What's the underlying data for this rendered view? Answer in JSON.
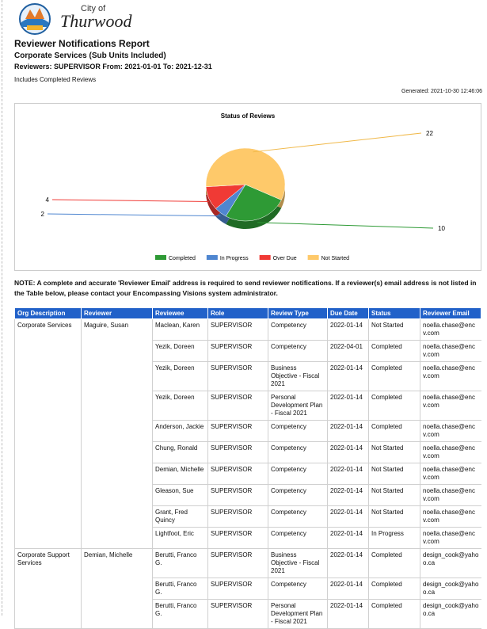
{
  "header": {
    "city": "City of",
    "name": "Thurwood"
  },
  "report": {
    "title": "Reviewer Notifications Report",
    "subtitle": "Corporate Services (Sub Units Included)",
    "reviewers": "Reviewers: SUPERVISOR From: 2021-01-01 To: 2021-12-31",
    "includes": "Includes Completed Reviews",
    "generated": "Generated: 2021-10-30 12:46:06"
  },
  "chart_data": {
    "type": "pie",
    "title": "Status of Reviews",
    "categories": [
      "Completed",
      "In Progress",
      "Over Due",
      "Not Started"
    ],
    "values": [
      10,
      2,
      4,
      22
    ],
    "colors": [
      "#2e9a35",
      "#4f86d0",
      "#f03a35",
      "#fec96a"
    ]
  },
  "note": "NOTE: A complete and accurate 'Reviewer Email' address is required to send reviewer notifications.  If a reviewer(s) email address is not listed in the Table below, please contact your Encompassing Visions system administrator.",
  "table": {
    "columns": [
      "Org Description",
      "Reviewer",
      "Reviewee",
      "Role",
      "Review Type",
      "Due Date",
      "Status",
      "Reviewer Email"
    ],
    "groups": [
      {
        "org": "Corporate Services",
        "reviewer": "Maguire, Susan",
        "rows": [
          [
            "Maclean, Karen",
            "SUPERVISOR",
            "Competency",
            "2022-01-14",
            "Not Started",
            "noella.chase@encv.com"
          ],
          [
            "Yezik, Doreen",
            "SUPERVISOR",
            "Competency",
            "2022-04-01",
            "Completed",
            "noella.chase@encv.com"
          ],
          [
            "Yezik, Doreen",
            "SUPERVISOR",
            "Business Objective - Fiscal 2021",
            "2022-01-14",
            "Completed",
            "noella.chase@encv.com"
          ],
          [
            "Yezik, Doreen",
            "SUPERVISOR",
            "Personal Development Plan - Fiscal 2021",
            "2022-01-14",
            "Completed",
            "noella.chase@encv.com"
          ],
          [
            "Anderson, Jackie",
            "SUPERVISOR",
            "Competency",
            "2022-01-14",
            "Completed",
            "noella.chase@encv.com"
          ],
          [
            "Chung, Ronald",
            "SUPERVISOR",
            "Competency",
            "2022-01-14",
            "Not Started",
            "noella.chase@encv.com"
          ],
          [
            "Demian, Michelle",
            "SUPERVISOR",
            "Competency",
            "2022-01-14",
            "Not Started",
            "noella.chase@encv.com"
          ],
          [
            "Gleason, Sue",
            "SUPERVISOR",
            "Competency",
            "2022-01-14",
            "Not Started",
            "noella.chase@encv.com"
          ],
          [
            "Grant, Fred Quincy",
            "SUPERVISOR",
            "Competency",
            "2022-01-14",
            "Not Started",
            "noella.chase@encv.com"
          ],
          [
            "Lightfoot, Eric",
            "SUPERVISOR",
            "Competency",
            "2022-01-14",
            "In Progress",
            "noella.chase@encv.com"
          ]
        ]
      },
      {
        "org": "Corporate Support Services",
        "reviewer": "Demian, Michelle",
        "rows": [
          [
            "Berutti, Franco G.",
            "SUPERVISOR",
            "Business Objective - Fiscal 2021",
            "2022-01-14",
            "Completed",
            "design_cook@yahoo.ca"
          ],
          [
            "Berutti, Franco G.",
            "SUPERVISOR",
            "Competency",
            "2022-01-14",
            "Completed",
            "design_cook@yahoo.ca"
          ],
          [
            "Berutti, Franco G.",
            "SUPERVISOR",
            "Personal Development Plan - Fiscal 2021",
            "2022-01-14",
            "Completed",
            "design_cook@yahoo.ca"
          ]
        ]
      }
    ]
  }
}
